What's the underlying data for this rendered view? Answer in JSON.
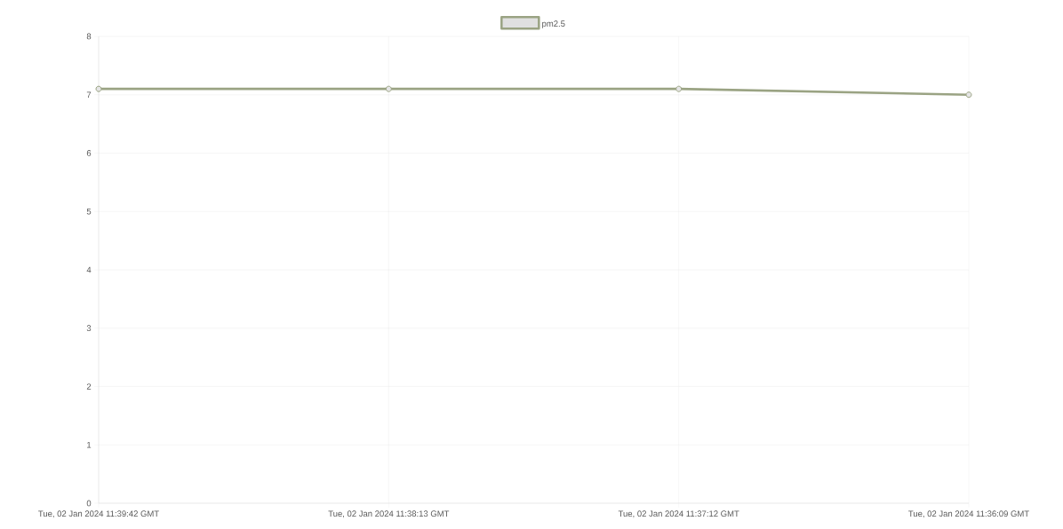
{
  "chart_data": {
    "type": "line",
    "categories": [
      "Tue, 02 Jan 2024 11:39:42 GMT",
      "Tue, 02 Jan 2024 11:38:13 GMT",
      "Tue, 02 Jan 2024 11:37:12 GMT",
      "Tue, 02 Jan 2024 11:36:09 GMT"
    ],
    "series": [
      {
        "name": "pm2.5",
        "color": "#9aa383",
        "values": [
          7.1,
          7.1,
          7.1,
          7.0
        ]
      }
    ],
    "ylim": [
      0,
      8
    ],
    "yticks": [
      0,
      1,
      2,
      3,
      4,
      5,
      6,
      7,
      8
    ],
    "grid": true,
    "legend": "top",
    "marker": "circle"
  }
}
